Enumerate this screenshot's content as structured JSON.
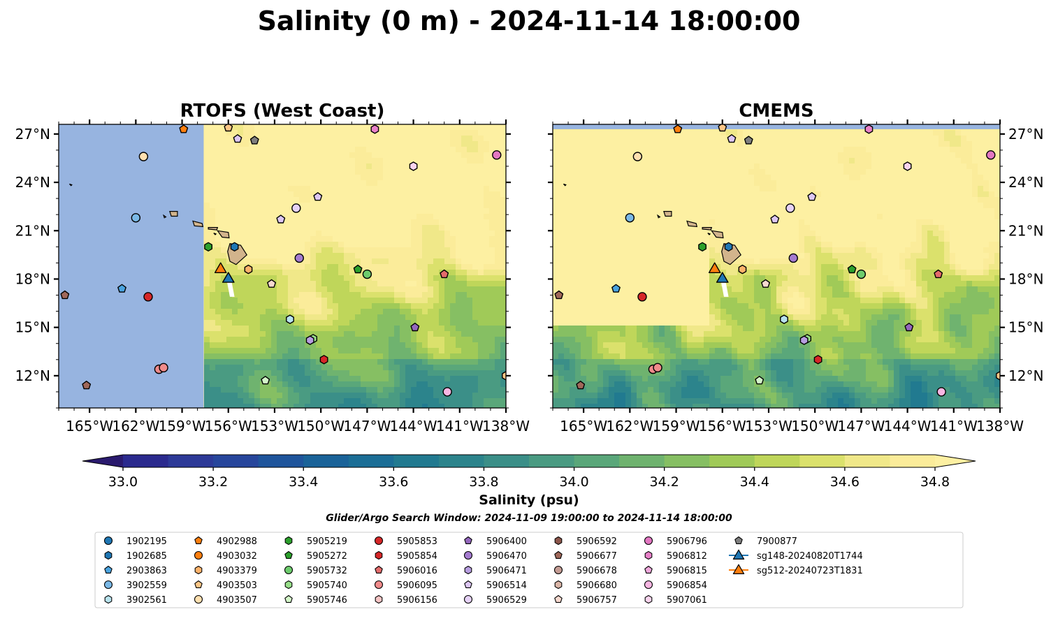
{
  "title": "Salinity (0 m) - 2024-11-14 18:00:00",
  "panels": [
    {
      "title": "RTOFS (West Coast)",
      "model_west_limit_lon": -157.6
    },
    {
      "title": "CMEMS",
      "model_north_limit_lat": 27.3
    }
  ],
  "colors": {
    "land_mask": "#97b4e0",
    "land": "#d2b48c",
    "ocean_fresh": "#24165e",
    "ocean_salty": "#fbec9a"
  },
  "chart_data": {
    "type": "heatmap",
    "variable": "Salinity",
    "depth_label": "0 m",
    "time": "2024-11-14 18:00:00",
    "xlim": [
      -167,
      -138
    ],
    "ylim": [
      10,
      27.6
    ],
    "x_ticks": [
      -165,
      -162,
      -159,
      -156,
      -153,
      -150,
      -147,
      -144,
      -141,
      -138
    ],
    "x_tick_labels": [
      "165°W",
      "162°W",
      "159°W",
      "156°W",
      "153°W",
      "150°W",
      "147°W",
      "144°W",
      "141°W",
      "138°W"
    ],
    "y_ticks": [
      12,
      15,
      18,
      21,
      24,
      27
    ],
    "y_tick_labels": [
      "12°N",
      "15°N",
      "18°N",
      "21°N",
      "24°N",
      "27°N"
    ],
    "colorbar": {
      "label": "Salinity (psu)",
      "min": 32.9,
      "max": 34.9,
      "step": 0.1,
      "ticks": [
        33.0,
        33.2,
        33.4,
        33.6,
        33.8,
        34.0,
        34.2,
        34.4,
        34.6,
        34.8
      ],
      "tick_labels": [
        "33.0",
        "33.2",
        "33.4",
        "33.6",
        "33.8",
        "34.0",
        "34.2",
        "34.4",
        "34.6",
        "34.8"
      ],
      "extend": "both",
      "colors": [
        "#2a1a6e",
        "#2b2a8e",
        "#2d3a98",
        "#27469c",
        "#1f559c",
        "#1a6399",
        "#1b6e96",
        "#217a90",
        "#2c848c",
        "#3b8f88",
        "#4a9b82",
        "#5aa77a",
        "#6fb36f",
        "#86bf63",
        "#a0ca58",
        "#bfd65a",
        "#dbe16c",
        "#f0e889",
        "#fbec9a",
        "#fdf0a2"
      ]
    },
    "search_window": "Glider/Argo Search Window: 2024-11-09 19:00:00 to 2024-11-14 18:00:00",
    "legend_placement": "bottom",
    "floats": [
      {
        "id": "1902195",
        "marker": "circle",
        "color": "#1f77b4",
        "lon": null,
        "lat": null
      },
      {
        "id": "1902685",
        "marker": "hexagon",
        "color": "#1f77b4",
        "lon": -155.6,
        "lat": 20.0
      },
      {
        "id": "2903863",
        "marker": "pentagon",
        "color": "#4aa3df",
        "lon": -162.9,
        "lat": 17.4
      },
      {
        "id": "3902559",
        "marker": "circle",
        "color": "#7ab8e6",
        "lon": -162.0,
        "lat": 21.8
      },
      {
        "id": "3902561",
        "marker": "hexagon",
        "color": "#b8e3ee",
        "lon": -152.0,
        "lat": 15.5
      },
      {
        "id": "4902988",
        "marker": "pentagon",
        "color": "#ff7f0e",
        "lon": -158.9,
        "lat": 27.3
      },
      {
        "id": "4903032",
        "marker": "circle",
        "color": "#ff7f0e",
        "lon": null,
        "lat": null
      },
      {
        "id": "4903379",
        "marker": "hexagon",
        "color": "#ffb36b",
        "lon": -154.7,
        "lat": 18.6
      },
      {
        "id": "4903503",
        "marker": "pentagon",
        "color": "#ffc787",
        "lon": -156.0,
        "lat": 27.4
      },
      {
        "id": "4903507",
        "marker": "circle",
        "color": "#ffe0b0",
        "lon": -161.5,
        "lat": 25.6
      },
      {
        "id": "5905219",
        "marker": "hexagon",
        "color": "#2ca02c",
        "lon": -157.3,
        "lat": 20.0
      },
      {
        "id": "5905272",
        "marker": "pentagon",
        "color": "#2ca02c",
        "lon": -147.6,
        "lat": 18.6
      },
      {
        "id": "5905732",
        "marker": "circle",
        "color": "#6dcc6d",
        "lon": -147.0,
        "lat": 18.3
      },
      {
        "id": "5905740",
        "marker": "hexagon",
        "color": "#98df8a",
        "lon": -150.5,
        "lat": 14.3
      },
      {
        "id": "5905746",
        "marker": "pentagon",
        "color": "#d4f7c9",
        "lon": -153.6,
        "lat": 11.7
      },
      {
        "id": "5905853",
        "marker": "circle",
        "color": "#d62728",
        "lon": -161.2,
        "lat": 16.9
      },
      {
        "id": "5905854",
        "marker": "hexagon",
        "color": "#d62728",
        "lon": -149.8,
        "lat": 13.0
      },
      {
        "id": "5906016",
        "marker": "pentagon",
        "color": "#e36b6b",
        "lon": -142.0,
        "lat": 18.3
      },
      {
        "id": "5906095",
        "marker": "circle",
        "color": "#f08b8b",
        "lon": -160.5,
        "lat": 12.4
      },
      {
        "id": "5906156",
        "marker": "hexagon",
        "color": "#f7c5c5",
        "lon": null,
        "lat": null
      },
      {
        "id": "5906400",
        "marker": "pentagon",
        "color": "#9467bd",
        "lon": -143.9,
        "lat": 15.0
      },
      {
        "id": "5906470",
        "marker": "circle",
        "color": "#a57bd0",
        "lon": -151.4,
        "lat": 19.3
      },
      {
        "id": "5906471",
        "marker": "hexagon",
        "color": "#b79de0",
        "lon": -150.7,
        "lat": 14.2
      },
      {
        "id": "5906514",
        "marker": "pentagon",
        "color": "#ddc7f4",
        "lon": -150.2,
        "lat": 23.1
      },
      {
        "id": "5906529",
        "marker": "circle",
        "color": "#e6d2f7",
        "lon": -151.6,
        "lat": 22.4
      },
      {
        "id": "5906592",
        "marker": "hexagon",
        "color": "#8c564b",
        "lon": null,
        "lat": null
      },
      {
        "id": "5906677",
        "marker": "pentagon",
        "color": "#a0685a",
        "lon": -166.6,
        "lat": 17.0
      },
      {
        "id": "5906678",
        "marker": "circle",
        "color": "#c49c94",
        "lon": null,
        "lat": null
      },
      {
        "id": "5906680",
        "marker": "hexagon",
        "color": "#dbb6a8",
        "lon": null,
        "lat": null
      },
      {
        "id": "5906757",
        "marker": "pentagon",
        "color": "#f7d9cf",
        "lon": -153.2,
        "lat": 17.7
      },
      {
        "id": "5906796",
        "marker": "circle",
        "color": "#e377c2",
        "lon": -138.6,
        "lat": 25.7
      },
      {
        "id": "5906812",
        "marker": "hexagon",
        "color": "#e981c9",
        "lon": -146.5,
        "lat": 27.3
      },
      {
        "id": "5906815",
        "marker": "pentagon",
        "color": "#f2a8dc",
        "lon": null,
        "lat": null
      },
      {
        "id": "5906854",
        "marker": "circle",
        "color": "#f7b6e2",
        "lon": -141.8,
        "lat": 11.0
      },
      {
        "id": "5907061",
        "marker": "hexagon",
        "color": "#fbd4ee",
        "lon": -144.0,
        "lat": 25.0
      },
      {
        "id": "7900877",
        "marker": "pentagon",
        "color": "#7f7f7f",
        "lon": -154.3,
        "lat": 26.6
      }
    ],
    "gliders": [
      {
        "id": "sg148-20240820T1744",
        "marker": "triangle",
        "color": "#1f77b4",
        "lon": -156.0,
        "lat": 18.0
      },
      {
        "id": "sg512-20240723T1831",
        "marker": "triangle",
        "color": "#ff7f0e",
        "lon": -156.5,
        "lat": 18.6
      }
    ],
    "extra_markers": [
      {
        "marker": "circle",
        "color": "#f08b8b",
        "lon": -160.2,
        "lat": 12.5
      },
      {
        "marker": "pentagon",
        "color": "#a0685a",
        "lon": -165.2,
        "lat": 11.4
      },
      {
        "marker": "pentagon",
        "color": "#ddc7f4",
        "lon": -155.4,
        "lat": 26.7
      },
      {
        "marker": "pentagon",
        "color": "#ddc7f4",
        "lon": -152.6,
        "lat": 21.7
      },
      {
        "marker": "hexagon",
        "color": "#ffc787",
        "lon": -138.0,
        "lat": 12.0
      }
    ]
  }
}
